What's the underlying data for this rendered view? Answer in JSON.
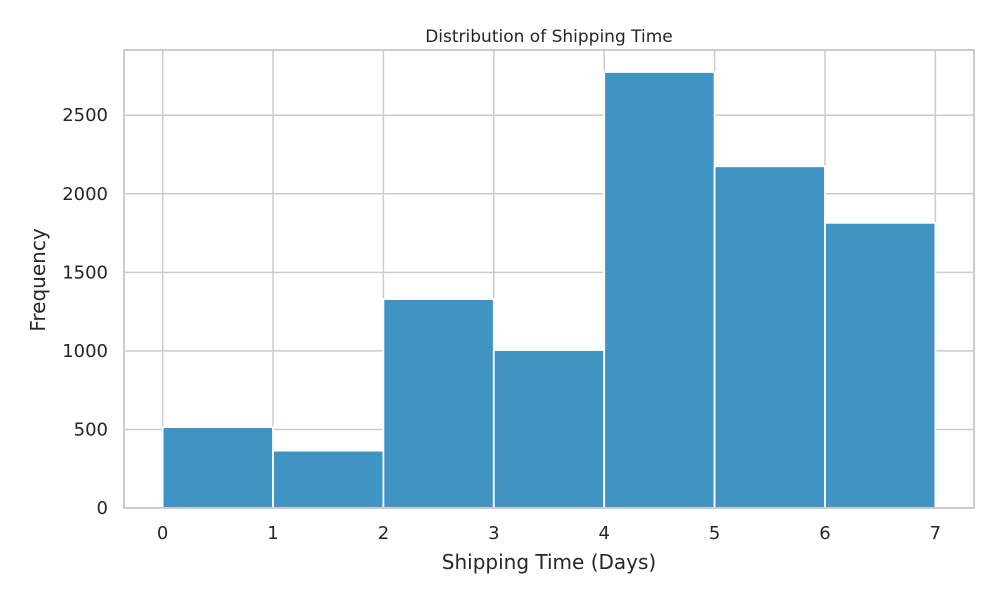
{
  "chart_data": {
    "type": "bar",
    "title": "Distribution of Shipping Time",
    "xlabel": "Shipping Time (Days)",
    "ylabel": "Frequency",
    "bin_edges": [
      0,
      1,
      2,
      3,
      4,
      5,
      6,
      7
    ],
    "values": [
      515,
      365,
      1330,
      1005,
      2775,
      2175,
      1815
    ],
    "xlim": [
      -0.35,
      7.35
    ],
    "ylim": [
      0,
      2915
    ],
    "xticks": [
      0,
      1,
      2,
      3,
      4,
      5,
      6,
      7
    ],
    "yticks": [
      0,
      500,
      1000,
      1500,
      2000,
      2500
    ],
    "grid": true,
    "bar_color": "#4094c4",
    "grid_color": "#cccccc"
  }
}
